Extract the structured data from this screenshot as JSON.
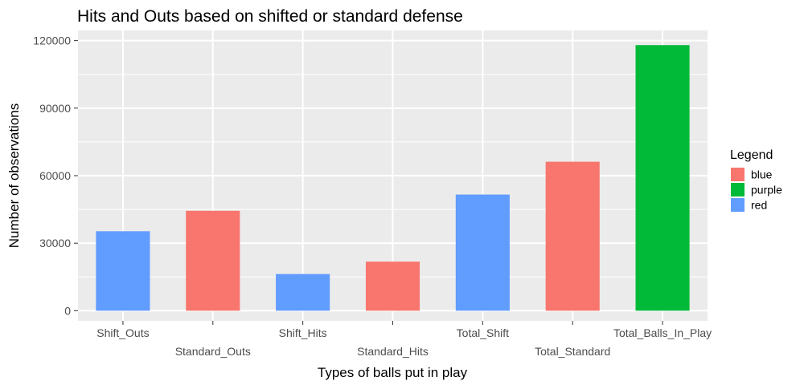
{
  "chart_data": {
    "type": "bar",
    "title": "Hits and Outs based on shifted or standard defense",
    "xlabel": "Types of balls put in play",
    "ylabel": "Number of observations",
    "categories": [
      "Shift_Outs",
      "Standard_Outs",
      "Shift_Hits",
      "Standard_Hits",
      "Total_Shift",
      "Total_Standard",
      "Total_Balls_In_Play"
    ],
    "values": [
      35300,
      44400,
      16300,
      21800,
      51600,
      66200,
      118000
    ],
    "groups": [
      "red",
      "blue",
      "red",
      "blue",
      "red",
      "blue",
      "purple"
    ],
    "yticks": [
      0,
      30000,
      60000,
      90000,
      120000
    ],
    "ylim": [
      -4500,
      124500
    ],
    "grid": true,
    "legend": {
      "title": "Legend",
      "position": "right",
      "entries": [
        {
          "label": "blue",
          "color": "#F8766D"
        },
        {
          "label": "purple",
          "color": "#00BA38"
        },
        {
          "label": "red",
          "color": "#619CFF"
        }
      ]
    },
    "colors": {
      "panel_background": "#EBEBEB",
      "grid": "#FFFFFF",
      "blue": "#F8766D",
      "purple": "#00BA38",
      "red": "#619CFF"
    }
  }
}
